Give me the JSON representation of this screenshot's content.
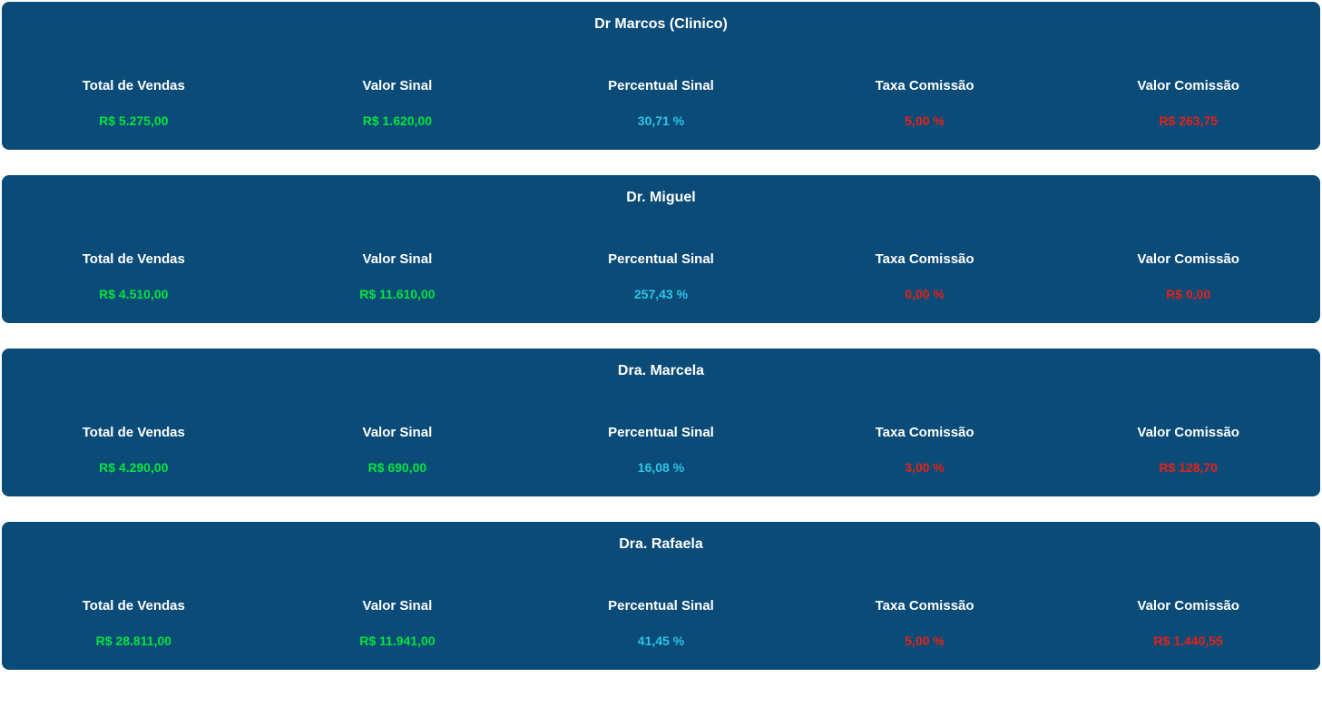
{
  "colors": {
    "card_background": "#0a4b78",
    "page_background": "#ffffff",
    "text_white": "#ffffff",
    "value_green": "#00e53d",
    "value_cyan": "#2ec4e6",
    "value_red": "#e62117"
  },
  "labels": {
    "total_vendas": "Total de Vendas",
    "valor_sinal": "Valor Sinal",
    "percentual_sinal": "Percentual Sinal",
    "taxa_comissao": "Taxa Comissão",
    "valor_comissao": "Valor Comissão"
  },
  "cards": [
    {
      "title": "Dr Marcos (Clinico)",
      "total_vendas": "R$  5.275,00",
      "valor_sinal": "R$  1.620,00",
      "percentual_sinal": "30,71 %",
      "taxa_comissao": "5,00 %",
      "valor_comissao": "R$  263,75"
    },
    {
      "title": "Dr. Miguel",
      "total_vendas": "R$  4.510,00",
      "valor_sinal": "R$  11.610,00",
      "percentual_sinal": "257,43 %",
      "taxa_comissao": "0,00 %",
      "valor_comissao": "R$  0,00"
    },
    {
      "title": "Dra. Marcela",
      "total_vendas": "R$  4.290,00",
      "valor_sinal": "R$  690,00",
      "percentual_sinal": "16,08 %",
      "taxa_comissao": "3,00 %",
      "valor_comissao": "R$  128,70"
    },
    {
      "title": "Dra. Rafaela",
      "total_vendas": "R$  28.811,00",
      "valor_sinal": "R$  11.941,00",
      "percentual_sinal": "41,45 %",
      "taxa_comissao": "5,00 %",
      "valor_comissao": "R$  1.440,55"
    }
  ]
}
